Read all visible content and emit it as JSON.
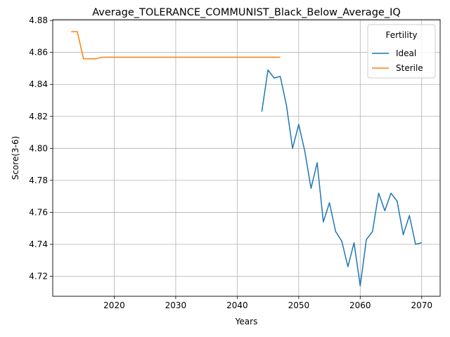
{
  "chart_data": {
    "type": "line",
    "title": "Average_TOLERANCE_COMMUNIST_Black_Below_Average_IQ",
    "xlabel": "Years",
    "ylabel": "Score(3-6)",
    "xlim": [
      2010,
      2073
    ],
    "ylim": [
      4.7075,
      4.8805
    ],
    "xticks": [
      2020,
      2030,
      2040,
      2050,
      2060,
      2070
    ],
    "xtick_labels": [
      "2020",
      "2030",
      "2040",
      "2050",
      "2060",
      "2070"
    ],
    "yticks": [
      4.72,
      4.74,
      4.76,
      4.78,
      4.8,
      4.82,
      4.84,
      4.86,
      4.88
    ],
    "ytick_labels": [
      "4.72",
      "4.74",
      "4.76",
      "4.78",
      "4.80",
      "4.82",
      "4.84",
      "4.86",
      "4.88"
    ],
    "grid": true,
    "legend": {
      "title": "Fertility",
      "position": "top-right"
    },
    "series": [
      {
        "name": "Ideal",
        "color": "#1f77b4",
        "x": [
          2044,
          2045,
          2046,
          2047,
          2048,
          2049,
          2050,
          2051,
          2052,
          2053,
          2054,
          2055,
          2056,
          2057,
          2058,
          2059,
          2060,
          2061,
          2062,
          2063,
          2064,
          2065,
          2066,
          2067,
          2068,
          2069,
          2070
        ],
        "y": [
          4.823,
          4.849,
          4.844,
          4.845,
          4.827,
          4.8,
          4.815,
          4.798,
          4.775,
          4.791,
          4.754,
          4.766,
          4.748,
          4.742,
          4.726,
          4.741,
          4.714,
          4.743,
          4.748,
          4.772,
          4.761,
          4.772,
          4.767,
          4.746,
          4.758,
          4.74,
          4.741
        ]
      },
      {
        "name": "Sterile",
        "color": "#ff7f0e",
        "x": [
          2013,
          2014,
          2015,
          2016,
          2017,
          2018,
          2019,
          2020,
          2025,
          2030,
          2035,
          2040,
          2045,
          2047
        ],
        "y": [
          4.873,
          4.873,
          4.856,
          4.856,
          4.856,
          4.857,
          4.857,
          4.857,
          4.857,
          4.857,
          4.857,
          4.857,
          4.857,
          4.857
        ]
      }
    ]
  }
}
